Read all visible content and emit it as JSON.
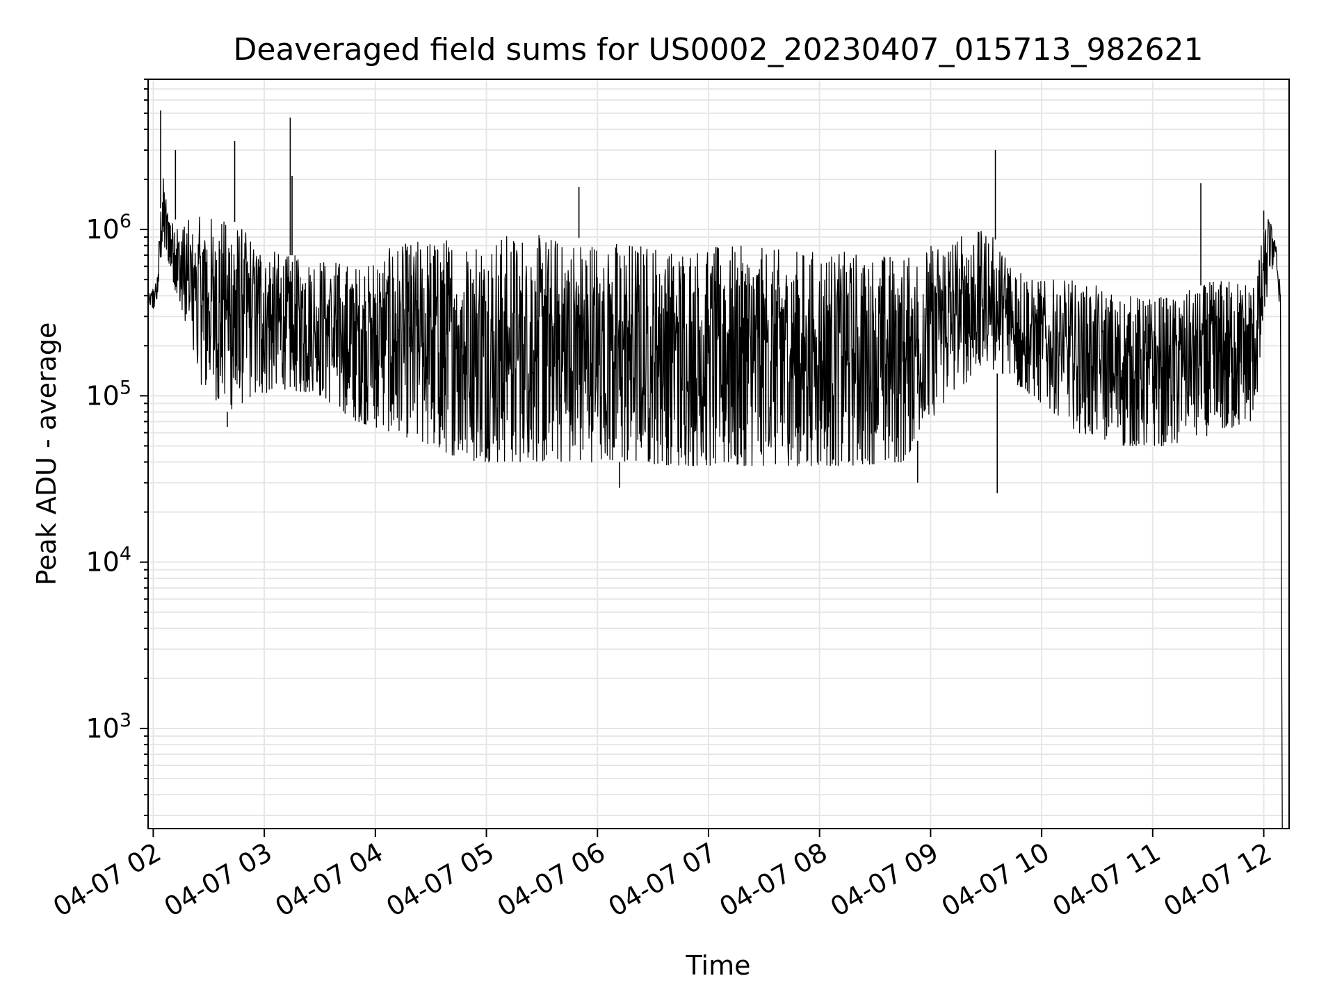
{
  "chart_data": {
    "type": "line",
    "title": "Deaveraged field sums for US0002_20230407_015713_982621",
    "xlabel": "Time",
    "ylabel": "Peak ADU - average",
    "yscale": "log",
    "ylim": [
      250,
      8000000
    ],
    "xlim": [
      "2023-04-07 01:57:13",
      "2023-04-07 12:13:42"
    ],
    "x_ticks": [
      {
        "value": "2023-04-07 02:00",
        "label": "04-07 02"
      },
      {
        "value": "2023-04-07 03:00",
        "label": "04-07 03"
      },
      {
        "value": "2023-04-07 04:00",
        "label": "04-07 04"
      },
      {
        "value": "2023-04-07 05:00",
        "label": "04-07 05"
      },
      {
        "value": "2023-04-07 06:00",
        "label": "04-07 06"
      },
      {
        "value": "2023-04-07 07:00",
        "label": "04-07 07"
      },
      {
        "value": "2023-04-07 08:00",
        "label": "04-07 08"
      },
      {
        "value": "2023-04-07 09:00",
        "label": "04-07 09"
      },
      {
        "value": "2023-04-07 10:00",
        "label": "04-07 10"
      },
      {
        "value": "2023-04-07 11:00",
        "label": "04-07 11"
      },
      {
        "value": "2023-04-07 12:00",
        "label": "04-07 12"
      }
    ],
    "y_ticks": [
      {
        "value": 1000,
        "base": "10",
        "exp": "3"
      },
      {
        "value": 10000,
        "base": "10",
        "exp": "4"
      },
      {
        "value": 100000,
        "base": "10",
        "exp": "5"
      },
      {
        "value": 1000000,
        "base": "10",
        "exp": "6"
      }
    ],
    "grid": true,
    "grid_color": "#e6e6e6",
    "line_color": "#000000",
    "series": [
      {
        "x": [
          "2023-04-07 01:57",
          "2023-04-07 02:02",
          "2023-04-07 02:05",
          "2023-04-07 02:09",
          "2023-04-07 02:15",
          "2023-04-07 02:25",
          "2023-04-07 02:40",
          "2023-04-07 02:55",
          "2023-04-07 03:10",
          "2023-04-07 03:30",
          "2023-04-07 03:50",
          "2023-04-07 04:10",
          "2023-04-07 04:30",
          "2023-04-07 04:50",
          "2023-04-07 05:15",
          "2023-04-07 05:45",
          "2023-04-07 06:15",
          "2023-04-07 06:45",
          "2023-04-07 07:15",
          "2023-04-07 07:45",
          "2023-04-07 08:15",
          "2023-04-07 08:45",
          "2023-04-07 09:10",
          "2023-04-07 09:30",
          "2023-04-07 09:55",
          "2023-04-07 10:20",
          "2023-04-07 10:45",
          "2023-04-07 11:10",
          "2023-04-07 11:35",
          "2023-04-07 11:55",
          "2023-04-07 12:02",
          "2023-04-07 12:06",
          "2023-04-07 12:09",
          "2023-04-07 12:10"
        ],
        "lower": [
          300000,
          350000,
          800000,
          600000,
          300000,
          120000,
          80000,
          100000,
          110000,
          100000,
          70000,
          60000,
          50000,
          40000,
          40000,
          40000,
          40000,
          38000,
          38000,
          38000,
          38000,
          40000,
          100000,
          150000,
          100000,
          60000,
          50000,
          50000,
          60000,
          70000,
          400000,
          700000,
          300000,
          250
        ],
        "upper": [
          400000,
          500000,
          2200000,
          1200000,
          1100000,
          1200000,
          1200000,
          900000,
          700000,
          700000,
          600000,
          800000,
          900000,
          900000,
          950000,
          900000,
          850000,
          800000,
          800000,
          750000,
          750000,
          700000,
          900000,
          1000000,
          500000,
          500000,
          400000,
          400000,
          500000,
          500000,
          1300000,
          900000,
          500000,
          1700
        ]
      }
    ],
    "spikes": [
      {
        "x": "2023-04-07 02:04",
        "y": 5200000
      },
      {
        "x": "2023-04-07 02:12",
        "y": 3000000
      },
      {
        "x": "2023-04-07 02:44",
        "y": 3400000
      },
      {
        "x": "2023-04-07 03:14",
        "y": 4700000
      },
      {
        "x": "2023-04-07 03:15",
        "y": 2100000
      },
      {
        "x": "2023-04-07 05:50",
        "y": 1800000
      },
      {
        "x": "2023-04-07 09:35",
        "y": 3000000
      },
      {
        "x": "2023-04-07 11:26",
        "y": 1900000
      },
      {
        "x": "2023-04-07 12:00",
        "y": 1300000
      }
    ],
    "dips": [
      {
        "x": "2023-04-07 02:40",
        "y": 65000
      },
      {
        "x": "2023-04-07 06:12",
        "y": 28000
      },
      {
        "x": "2023-04-07 08:53",
        "y": 30000
      },
      {
        "x": "2023-04-07 09:36",
        "y": 26000
      }
    ]
  }
}
